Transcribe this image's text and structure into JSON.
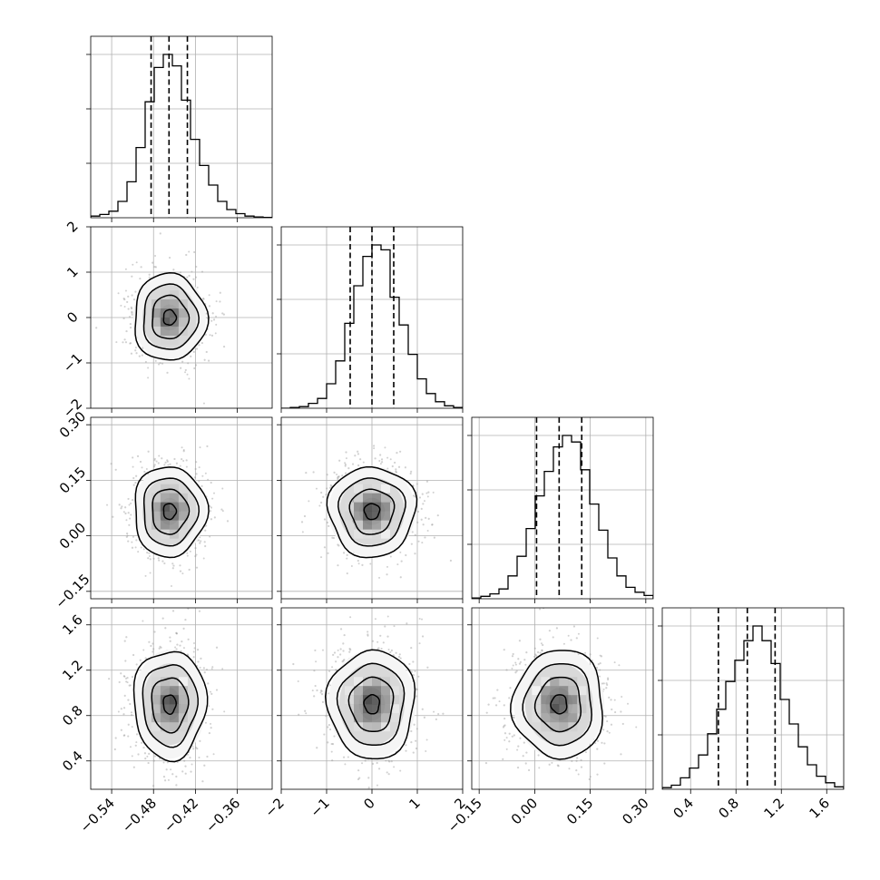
{
  "chart_data": {
    "type": "corner",
    "parameters": [
      {
        "index": 0,
        "range": [
          -0.57,
          -0.31
        ],
        "mean": -0.457,
        "sd": 0.026,
        "quantiles": [
          -0.4835,
          -0.4578,
          -0.4315
        ],
        "tick_values": [
          -0.54,
          -0.48,
          -0.42,
          -0.36
        ],
        "tick_labels": [
          "−0.54",
          "−0.48",
          "−0.42",
          "−0.36"
        ]
      },
      {
        "index": 1,
        "range": [
          -2.0,
          2.0
        ],
        "mean": 0.0,
        "sd": 0.48,
        "quantiles": [
          -0.48,
          0.0,
          0.48
        ],
        "tick_values": [
          -2,
          -1,
          0,
          1,
          2
        ],
        "tick_labels": [
          "−2",
          "−1",
          "0",
          "1",
          "2"
        ]
      },
      {
        "index": 2,
        "range": [
          -0.17,
          0.32
        ],
        "mean": 0.066,
        "sd": 0.061,
        "quantiles": [
          0.005,
          0.066,
          0.127
        ],
        "tick_values": [
          -0.15,
          0.0,
          0.15,
          0.3
        ],
        "tick_labels": [
          "−0.15",
          "0.00",
          "0.15",
          "0.30"
        ]
      },
      {
        "index": 3,
        "range": [
          0.15,
          1.75
        ],
        "mean": 0.9,
        "sd": 0.24,
        "quantiles": [
          0.645,
          0.9,
          1.145
        ],
        "tick_values": [
          0.4,
          0.8,
          1.2,
          1.6
        ],
        "tick_labels": [
          "0.4",
          "0.8",
          "1.2",
          "1.6"
        ]
      }
    ],
    "histograms": [
      {
        "param": 0,
        "bins": 20,
        "relative_heights": [
          0.01,
          0.02,
          0.04,
          0.1,
          0.22,
          0.43,
          0.71,
          0.92,
          1.0,
          0.93,
          0.72,
          0.48,
          0.32,
          0.2,
          0.1,
          0.05,
          0.025,
          0.01,
          0.005,
          0.002
        ]
      },
      {
        "param": 1,
        "bins": 20,
        "relative_heights": [
          0.0,
          0.005,
          0.01,
          0.03,
          0.06,
          0.15,
          0.29,
          0.52,
          0.75,
          0.93,
          1.0,
          0.97,
          0.68,
          0.51,
          0.33,
          0.18,
          0.09,
          0.04,
          0.015,
          0.005
        ]
      },
      {
        "param": 2,
        "bins": 20,
        "relative_heights": [
          0.005,
          0.015,
          0.03,
          0.06,
          0.14,
          0.26,
          0.43,
          0.63,
          0.78,
          0.93,
          1.0,
          0.96,
          0.79,
          0.58,
          0.42,
          0.25,
          0.14,
          0.07,
          0.04,
          0.02
        ]
      },
      {
        "param": 3,
        "bins": 20,
        "relative_heights": [
          0.01,
          0.025,
          0.07,
          0.13,
          0.21,
          0.34,
          0.49,
          0.66,
          0.79,
          0.91,
          1.0,
          0.91,
          0.77,
          0.55,
          0.4,
          0.26,
          0.15,
          0.08,
          0.04,
          0.015
        ]
      }
    ],
    "contour_levels": [
      "0.5σ",
      "1σ",
      "1.5σ",
      "2σ"
    ],
    "colors": {
      "contour": "#000000",
      "scatter": "#9a9a9a",
      "grid": "#b0b0b0",
      "quantile_line": "#000000"
    },
    "grid": true,
    "title": "",
    "xlabel": "",
    "ylabel": ""
  }
}
